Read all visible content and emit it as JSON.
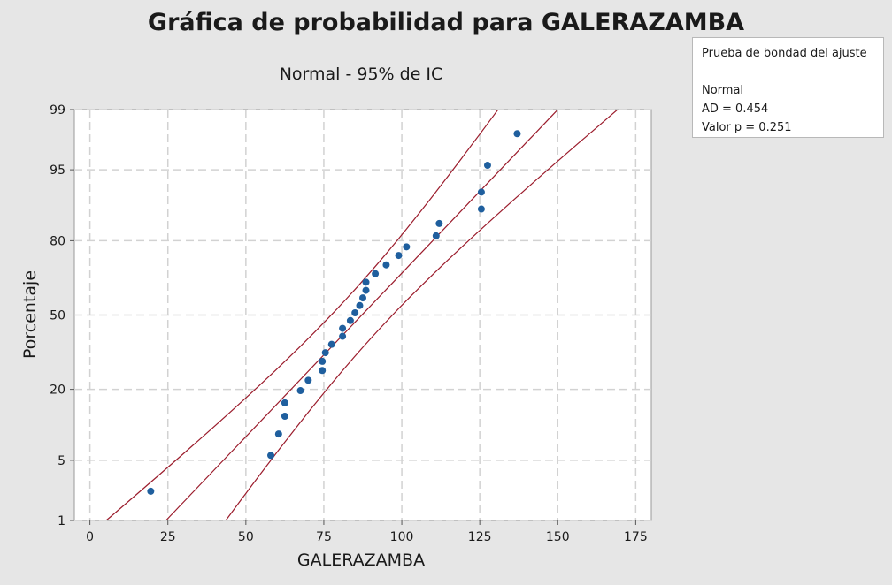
{
  "chart_data": {
    "type": "scatter",
    "title": "Gráfica de probabilidad para GALERAZAMBA",
    "subtitle": "Normal - 95% de IC",
    "xlabel": "GALERAZAMBA",
    "ylabel": "Porcentaje",
    "xlim": [
      -5,
      180
    ],
    "ylim_percent": [
      1,
      99
    ],
    "y_scale": "normal-probability",
    "grid": true,
    "x_ticks": [
      0,
      25,
      50,
      75,
      100,
      125,
      150,
      175
    ],
    "y_ticks": [
      1,
      5,
      20,
      50,
      80,
      95,
      99
    ],
    "fit_line": {
      "mean": 87.2,
      "stdev": 27.0
    },
    "ci_level": 0.95,
    "points": [
      {
        "x": 19.5,
        "y": 2.3
      },
      {
        "x": 58.0,
        "y": 5.6
      },
      {
        "x": 60.5,
        "y": 8.9
      },
      {
        "x": 62.5,
        "y": 12.6
      },
      {
        "x": 62.5,
        "y": 16.0
      },
      {
        "x": 67.5,
        "y": 19.6
      },
      {
        "x": 70.0,
        "y": 23.0
      },
      {
        "x": 74.5,
        "y": 26.5
      },
      {
        "x": 74.5,
        "y": 30.0
      },
      {
        "x": 75.5,
        "y": 33.5
      },
      {
        "x": 77.5,
        "y": 37.0
      },
      {
        "x": 81.0,
        "y": 40.5
      },
      {
        "x": 81.0,
        "y": 44.0
      },
      {
        "x": 83.5,
        "y": 47.5
      },
      {
        "x": 85.0,
        "y": 51.0
      },
      {
        "x": 86.5,
        "y": 54.3
      },
      {
        "x": 87.5,
        "y": 57.7
      },
      {
        "x": 88.5,
        "y": 61.0
      },
      {
        "x": 88.5,
        "y": 64.5
      },
      {
        "x": 91.5,
        "y": 68.0
      },
      {
        "x": 95.0,
        "y": 71.5
      },
      {
        "x": 99.0,
        "y": 75.0
      },
      {
        "x": 101.5,
        "y": 78.0
      },
      {
        "x": 111.0,
        "y": 81.5
      },
      {
        "x": 112.0,
        "y": 85.0
      },
      {
        "x": 125.5,
        "y": 88.5
      },
      {
        "x": 125.5,
        "y": 91.8
      },
      {
        "x": 127.5,
        "y": 95.5
      },
      {
        "x": 137.0,
        "y": 98.0
      }
    ]
  },
  "stats_box": {
    "heading": "Prueba de bondad del ajuste",
    "distribution": "Normal",
    "ad": "AD = 0.454",
    "p_value": "Valor p = 0.251"
  },
  "colors": {
    "background": "#e6e6e6",
    "plot_area": "#ffffff",
    "grid": "#d2d2d2",
    "points": "#1f5f9e",
    "fit_lines": "#9b1c2c"
  }
}
